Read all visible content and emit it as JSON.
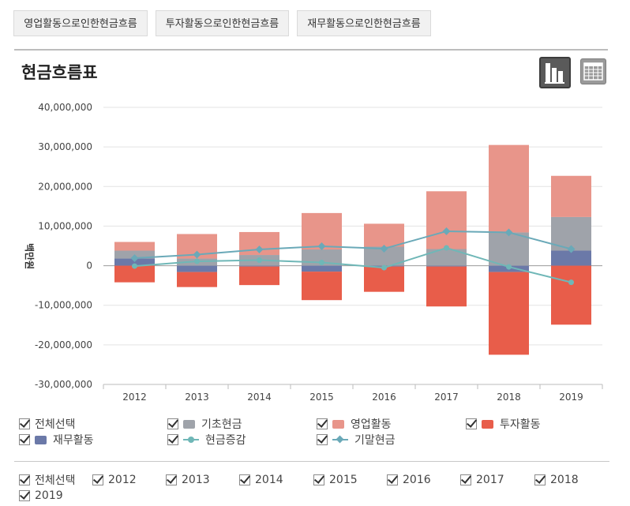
{
  "tabs": [
    "영업활동으로인한현금흐름",
    "투자활동으로인한현금흐름",
    "재무활동으로인한현금흐름"
  ],
  "title": "현금흐름표",
  "legend": {
    "select_all": "전체선택",
    "items": [
      "기초현금",
      "영업활동",
      "투자활동",
      "재무활동",
      "현금증감",
      "기말현금"
    ]
  },
  "year_filter": {
    "select_all": "전체선택",
    "years": [
      "2012",
      "2013",
      "2014",
      "2015",
      "2016",
      "2017",
      "2018",
      "2019"
    ]
  },
  "colors": {
    "basic_cash": "#9fa3aa",
    "operating": "#e8958a",
    "investing": "#e85d4a",
    "financing": "#6b79a8",
    "cash_change": "#6fb7b7",
    "ending_cash": "#6aa9b8"
  },
  "chart_data": {
    "type": "bar",
    "stacked": true,
    "ylabel": "백만원",
    "ylim": [
      -30000000,
      40000000
    ],
    "yticks": [
      40000000,
      30000000,
      20000000,
      10000000,
      0,
      -10000000,
      -20000000,
      -30000000
    ],
    "ytick_labels": [
      "40,000,000",
      "30,000,000",
      "20,000,000",
      "10,000,000",
      "0",
      "-10,000,000",
      "-20,000,000",
      "-30,000,000"
    ],
    "categories": [
      "2012",
      "2013",
      "2014",
      "2015",
      "2016",
      "2017",
      "2018",
      "2019"
    ],
    "series": [
      {
        "name": "기초현금",
        "type": "bar",
        "values": [
          2000000,
          1800000,
          2700000,
          4100000,
          4800000,
          4200000,
          8400000,
          8500000
        ]
      },
      {
        "name": "영업활동",
        "type": "bar",
        "values": [
          2200000,
          6200000,
          5800000,
          9200000,
          5800000,
          14600000,
          22100000,
          10400000
        ]
      },
      {
        "name": "투자활동",
        "type": "bar",
        "values": [
          -4200000,
          -3800000,
          -4700000,
          -7200000,
          -6400000,
          -10100000,
          -20900000,
          -14900000
        ]
      },
      {
        "name": "재무활동",
        "type": "bar",
        "values": [
          1800000,
          -1600000,
          -200000,
          -1500000,
          -200000,
          -200000,
          -1600000,
          3800000
        ]
      },
      {
        "name": "현금증감",
        "type": "line",
        "values": [
          -100000,
          1100000,
          1400000,
          800000,
          -500000,
          4500000,
          -300000,
          -4200000
        ]
      },
      {
        "name": "기말현금",
        "type": "line",
        "values": [
          1900000,
          2800000,
          4100000,
          4900000,
          4300000,
          8700000,
          8400000,
          4200000
        ]
      }
    ],
    "grid": true,
    "legend_position": "bottom"
  }
}
